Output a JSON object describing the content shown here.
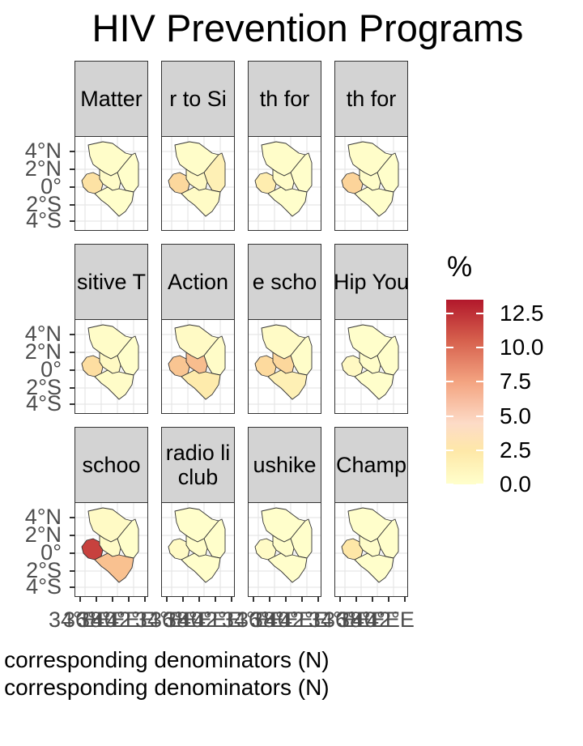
{
  "title": "HIV Prevention Programs",
  "caption_lines": [
    "r corresponding denominators (N)",
    "r corresponding denominators (N)"
  ],
  "legend": {
    "title": "%",
    "min": 0,
    "max": 13.5,
    "labels": [
      "12.5",
      "10.0",
      "7.5",
      "5.0",
      "2.5",
      "0.0"
    ],
    "values": [
      12.5,
      10.0,
      7.5,
      5.0,
      2.5,
      0.0
    ],
    "colors": [
      "#ffffcc",
      "#fee8a8",
      "#fddbc7",
      "#f4a582",
      "#d6604d",
      "#b2182b"
    ]
  },
  "y_axis_labels": [
    "4°N",
    "2°N",
    "0°",
    "2°S",
    "4°S"
  ],
  "x_axis_labels": [
    "34°E",
    "36°E",
    "38°E",
    "40°E",
    "42°E"
  ],
  "facets": [
    {
      "label": "Matter",
      "regions": {
        "west": 3.2,
        "north": 0.2,
        "east": 0.1,
        "central": 0.3,
        "coast": 0.1
      }
    },
    {
      "label": "r to Si",
      "regions": {
        "west": 4.5,
        "north": 0.2,
        "east": 1.6,
        "central": 0.6,
        "coast": 0.4
      }
    },
    {
      "label": "th for",
      "regions": {
        "west": 2.0,
        "north": 0.2,
        "east": 0.1,
        "central": 0.3,
        "coast": 0.1
      }
    },
    {
      "label": "th for",
      "regions": {
        "west": 5.0,
        "north": 0.2,
        "east": 0.1,
        "central": 0.2,
        "coast": 0.1
      }
    },
    {
      "label": "sitive T",
      "regions": {
        "west": 3.8,
        "north": 0.3,
        "east": 0.1,
        "central": 0.6,
        "coast": 0.3
      }
    },
    {
      "label": "Action",
      "regions": {
        "west": 5.8,
        "north": 0.5,
        "east": 0.3,
        "central": 6.2,
        "coast": 2.2
      }
    },
    {
      "label": "e scho",
      "regions": {
        "west": 4.2,
        "north": 0.4,
        "east": 0.2,
        "central": 4.6,
        "coast": 1.6
      }
    },
    {
      "label": "Hip You",
      "regions": {
        "west": 0.6,
        "north": 0.1,
        "east": 0.1,
        "central": 0.2,
        "coast": 0.1
      }
    },
    {
      "label": "schoo",
      "regions": {
        "west": 11.5,
        "north": 0.5,
        "east": 0.1,
        "central": 0.4,
        "coast": 6.0
      }
    },
    {
      "label": "radio li\nclub",
      "regions": {
        "west": 0.5,
        "north": 0.1,
        "east": 0.1,
        "central": 0.2,
        "coast": 0.1
      }
    },
    {
      "label": "ushike",
      "regions": {
        "west": 0.4,
        "north": 0.1,
        "east": 0.1,
        "central": 0.2,
        "coast": 0.1
      }
    },
    {
      "label": "Champ",
      "regions": {
        "west": 2.6,
        "north": 0.1,
        "east": 0.1,
        "central": 0.2,
        "coast": 0.1
      }
    }
  ]
}
